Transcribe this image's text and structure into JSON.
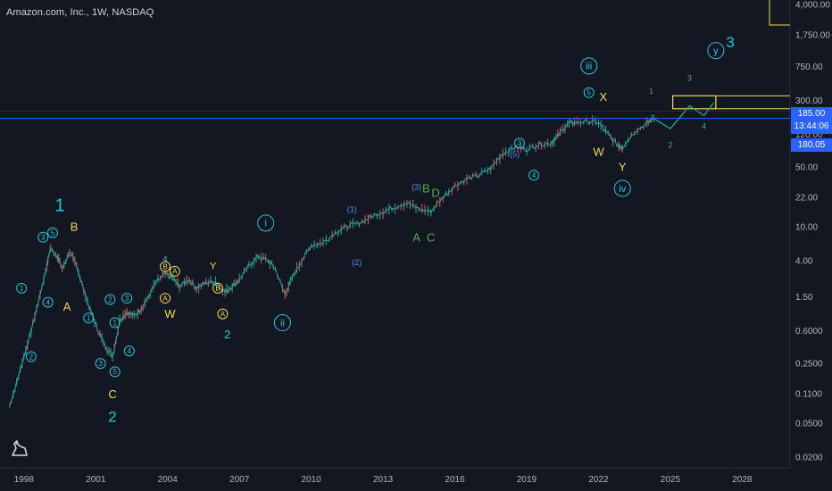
{
  "header": {
    "title": "Amazon.com, Inc., 1W, NASDAQ"
  },
  "price_labels": {
    "last_price": "185.00",
    "countdown": "13:44:06",
    "prev_level": "180.05"
  },
  "colors": {
    "background": "#131722",
    "price_line": "#2962ff",
    "candles": "#26a69a",
    "wave_cyan": "#22c7d8",
    "wave_yellow": "#f2d94e",
    "wave_white": "#ffffff",
    "wave_blue": "#5b8def",
    "wave_green": "#4caf50",
    "target_box": "#f2d94e"
  },
  "chart_data": {
    "type": "line",
    "title": "Amazon.com, Inc., 1W, NASDAQ",
    "xlabel": "",
    "ylabel": "",
    "y_scale": "log",
    "ylim": [
      0.015,
      4500
    ],
    "xlim": [
      1997.0,
      2030.0
    ],
    "x_ticks": [
      "1998",
      "2001",
      "2004",
      "2007",
      "2010",
      "2013",
      "2016",
      "2019",
      "2022",
      "2025",
      "2028"
    ],
    "y_ticks": [
      "4,000.00",
      "1,750.00",
      "750.00",
      "300.00",
      "185.00",
      "120.00",
      "50.00",
      "22.00",
      "10.00",
      "4.00",
      "1.50",
      "0.6000",
      "0.2500",
      "0.1100",
      "0.0500",
      "0.0200"
    ],
    "y_tick_values": [
      4000,
      1750,
      750,
      300,
      185,
      120,
      50,
      22,
      10,
      4,
      1.5,
      0.6,
      0.25,
      0.11,
      0.05,
      0.02
    ],
    "legend": "none",
    "grid": false,
    "price_line": 185.0,
    "series": [
      {
        "x": [
          1997.4,
          1997.7,
          1998.0,
          1998.3,
          1998.6,
          1998.9,
          1999.1,
          1999.4,
          1999.6,
          1999.9,
          2000.2,
          2000.5,
          2000.8,
          2001.1,
          2001.4,
          2001.7,
          2002.0,
          2002.3,
          2002.6,
          2002.9,
          2003.2,
          2003.5,
          2003.9,
          2004.2,
          2004.5,
          2004.9,
          2005.2,
          2005.6,
          2006.0,
          2006.4,
          2006.7,
          2007.0,
          2007.4,
          2007.8,
          2008.2,
          2008.5,
          2008.9,
          2009.2,
          2009.6,
          2010.0,
          2010.5,
          2011.0,
          2011.5,
          2012.0,
          2012.5,
          2013.0,
          2013.5,
          2014.0,
          2014.5,
          2015.0,
          2015.5,
          2016.0,
          2016.5,
          2017.0,
          2017.5,
          2018.0,
          2018.5,
          2019.0,
          2019.5,
          2020.0,
          2020.3,
          2020.7,
          2021.0,
          2021.5,
          2022.0,
          2022.4,
          2022.8,
          2023.0,
          2023.5,
          2024.0,
          2024.3
        ],
        "y": [
          0.08,
          0.15,
          0.3,
          0.6,
          1.3,
          3.0,
          5.5,
          4.5,
          3.2,
          5.0,
          3.5,
          1.8,
          1.0,
          0.6,
          0.4,
          0.3,
          0.8,
          1.0,
          0.9,
          1.1,
          1.5,
          2.2,
          2.8,
          2.5,
          2.0,
          2.4,
          1.9,
          2.2,
          2.3,
          1.7,
          2.0,
          2.4,
          3.5,
          4.5,
          4.0,
          3.2,
          1.6,
          2.5,
          4.0,
          6.0,
          6.5,
          8.5,
          10.0,
          11.0,
          13.0,
          15.0,
          17.0,
          19.0,
          16.0,
          15.0,
          22.0,
          30.0,
          36.0,
          40.0,
          48.0,
          72.0,
          85.0,
          80.0,
          92.0,
          95.0,
          115.0,
          160.0,
          165.0,
          170.0,
          165.0,
          120.0,
          90.0,
          85.0,
          130.0,
          160.0,
          185.0
        ]
      }
    ],
    "projection": {
      "x": [
        2024.3,
        2025.0,
        2025.8,
        2026.4,
        2026.8
      ],
      "y": [
        185.0,
        140.0,
        260.0,
        200.0,
        280.0
      ]
    },
    "target_zone": {
      "y_low": 240,
      "y_high": 340,
      "x_start": 2025.1,
      "x_end": 2026.9
    },
    "annotations": [
      {
        "t": "1",
        "x": 1999.5,
        "y": 18,
        "c": "cyan",
        "s": "xl"
      },
      {
        "t": "B",
        "x": 2000.1,
        "y": 10,
        "c": "yellow",
        "s": "m"
      },
      {
        "t": "3",
        "x": 1998.8,
        "y": 7.5,
        "c": "cyan",
        "s": "circle"
      },
      {
        "t": "5",
        "x": 1999.2,
        "y": 8.5,
        "c": "cyan",
        "s": "circle"
      },
      {
        "t": "1",
        "x": 1997.9,
        "y": 1.9,
        "c": "cyan",
        "s": "circle"
      },
      {
        "t": "4",
        "x": 1999.0,
        "y": 1.3,
        "c": "cyan",
        "s": "circle"
      },
      {
        "t": "2",
        "x": 1998.3,
        "y": 0.3,
        "c": "cyan",
        "s": "circle"
      },
      {
        "t": "A",
        "x": 1999.8,
        "y": 1.15,
        "c": "yellow",
        "s": "m"
      },
      {
        "t": "1",
        "x": 2000.7,
        "y": 0.85,
        "c": "cyan",
        "s": "circle"
      },
      {
        "t": "2",
        "x": 2001.6,
        "y": 1.4,
        "c": "cyan",
        "s": "circle"
      },
      {
        "t": "3",
        "x": 2002.3,
        "y": 1.45,
        "c": "cyan",
        "s": "circle"
      },
      {
        "t": "1",
        "x": 2001.8,
        "y": 0.75,
        "c": "cyan",
        "s": "circle"
      },
      {
        "t": "4",
        "x": 2002.4,
        "y": 0.35,
        "c": "cyan",
        "s": "circle"
      },
      {
        "t": "3",
        "x": 2001.2,
        "y": 0.25,
        "c": "cyan",
        "s": "circle"
      },
      {
        "t": "5",
        "x": 2001.8,
        "y": 0.2,
        "c": "cyan",
        "s": "circle"
      },
      {
        "t": "C",
        "x": 2001.7,
        "y": 0.11,
        "c": "yellow",
        "s": "m"
      },
      {
        "t": "2",
        "x": 2001.7,
        "y": 0.06,
        "c": "cyan",
        "s": "l"
      },
      {
        "t": "4",
        "x": 2003.9,
        "y": 4.2,
        "c": "cyan",
        "s": "xs"
      },
      {
        "t": "B",
        "x": 2003.9,
        "y": 3.4,
        "c": "yellow",
        "s": "circle"
      },
      {
        "t": "A",
        "x": 2004.3,
        "y": 3.0,
        "c": "yellow",
        "s": "circle"
      },
      {
        "t": "A",
        "x": 2003.9,
        "y": 1.45,
        "c": "yellow",
        "s": "circle"
      },
      {
        "t": "W",
        "x": 2004.1,
        "y": 0.95,
        "c": "yellow",
        "s": "m"
      },
      {
        "t": "Y",
        "x": 2005.9,
        "y": 3.5,
        "c": "yellow",
        "s": "s"
      },
      {
        "t": "B",
        "x": 2006.1,
        "y": 1.9,
        "c": "yellow",
        "s": "circle"
      },
      {
        "t": "A",
        "x": 2006.3,
        "y": 0.95,
        "c": "yellow",
        "s": "circle"
      },
      {
        "t": "2",
        "x": 2006.5,
        "y": 0.55,
        "c": "cyan",
        "s": "m"
      },
      {
        "t": "i",
        "x": 2008.1,
        "y": 11.0,
        "c": "cyan",
        "s": "circle-l"
      },
      {
        "t": "ii",
        "x": 2008.8,
        "y": 0.75,
        "c": "cyan",
        "s": "circle-l"
      },
      {
        "t": "(1)",
        "x": 2011.7,
        "y": 16.0,
        "c": "blue",
        "s": "xs"
      },
      {
        "t": "(2)",
        "x": 2011.9,
        "y": 3.8,
        "c": "blue",
        "s": "xs"
      },
      {
        "t": "(3)",
        "x": 2014.4,
        "y": 29.0,
        "c": "blue",
        "s": "xs"
      },
      {
        "t": "B",
        "x": 2014.8,
        "y": 28.0,
        "c": "green",
        "s": "m"
      },
      {
        "t": "D",
        "x": 2015.2,
        "y": 25.0,
        "c": "green",
        "s": "m"
      },
      {
        "t": "A",
        "x": 2014.4,
        "y": 7.5,
        "c": "green",
        "s": "m"
      },
      {
        "t": "C",
        "x": 2015.0,
        "y": 7.5,
        "c": "green",
        "s": "m"
      },
      {
        "t": "3",
        "x": 2018.7,
        "y": 95.0,
        "c": "cyan",
        "s": "circle"
      },
      {
        "t": "(5)",
        "x": 2018.5,
        "y": 70.0,
        "c": "blue",
        "s": "xs"
      },
      {
        "t": "4",
        "x": 2019.3,
        "y": 40.0,
        "c": "cyan",
        "s": "circle"
      },
      {
        "t": "iii",
        "x": 2021.6,
        "y": 760.0,
        "c": "cyan",
        "s": "circle-l"
      },
      {
        "t": "5",
        "x": 2021.6,
        "y": 370.0,
        "c": "cyan",
        "s": "circle"
      },
      {
        "t": "X",
        "x": 2022.2,
        "y": 330.0,
        "c": "yellow",
        "s": "m"
      },
      {
        "t": "W",
        "x": 2022.0,
        "y": 75.0,
        "c": "yellow",
        "s": "m"
      },
      {
        "t": "Y",
        "x": 2023.0,
        "y": 50.0,
        "c": "yellow",
        "s": "m"
      },
      {
        "t": "iv",
        "x": 2023.0,
        "y": 28.0,
        "c": "cyan",
        "s": "circle-l"
      },
      {
        "t": "1",
        "x": 2024.2,
        "y": 390.0,
        "c": "green",
        "s": "xs"
      },
      {
        "t": "2",
        "x": 2025.0,
        "y": 90.0,
        "c": "green",
        "s": "xs"
      },
      {
        "t": "3",
        "x": 2025.8,
        "y": 550.0,
        "c": "green",
        "s": "xs"
      },
      {
        "t": "4",
        "x": 2026.4,
        "y": 150.0,
        "c": "green",
        "s": "xs"
      },
      {
        "t": "y",
        "x": 2026.9,
        "y": 1150.0,
        "c": "cyan",
        "s": "circle-l"
      },
      {
        "t": "3",
        "x": 2027.5,
        "y": 1450.0,
        "c": "cyan",
        "s": "l"
      }
    ]
  }
}
